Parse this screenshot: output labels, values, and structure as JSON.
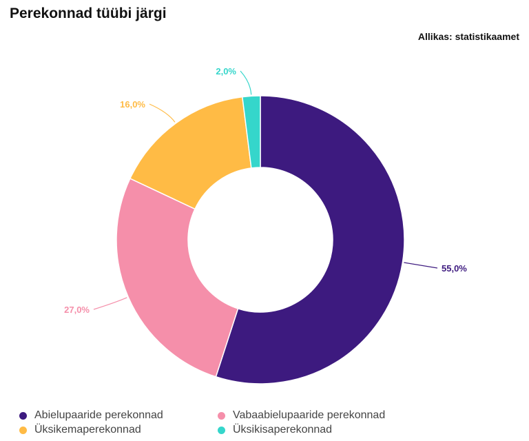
{
  "header": {
    "title": "Perekonnad tüübi järgi",
    "source": "Allikas: statistikaamet"
  },
  "chart_data": {
    "type": "pie",
    "subtype": "donut",
    "title": "Perekonnad tüübi järgi",
    "source": "Allikas: statistikaamet",
    "categories": [
      "Abielupaaride perekonnad",
      "Vabaabielupaaride perekonnad",
      "Üksikemaperekonnad",
      "Üksikisaperekonnad"
    ],
    "values": [
      55.0,
      27.0,
      16.0,
      2.0
    ],
    "labels": [
      "55,0%",
      "27,0%",
      "16,0%",
      "2,0%"
    ],
    "colors": [
      "#3d1a7f",
      "#f58faa",
      "#ffbb45",
      "#35d6cb"
    ],
    "legend_position": "bottom"
  },
  "legend": {
    "items": [
      {
        "label": "Abielupaaride perekonnad",
        "color": "#3d1a7f"
      },
      {
        "label": "Vabaabielupaaride perekonnad",
        "color": "#f58faa"
      },
      {
        "label": "Üksikemaperekonnad",
        "color": "#ffbb45"
      },
      {
        "label": "Üksikisaperekonnad",
        "color": "#35d6cb"
      }
    ]
  }
}
